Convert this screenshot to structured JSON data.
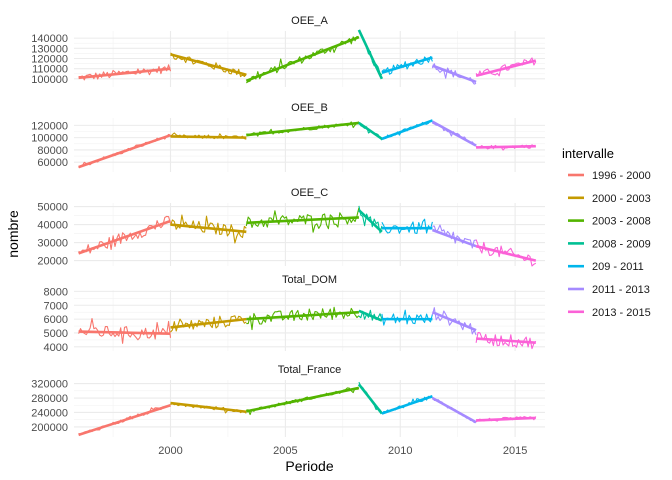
{
  "chart_data": {
    "type": "line",
    "xlabel": "Periode",
    "ylabel": "nombre",
    "x_ticks": [
      2000,
      2005,
      2010,
      2015
    ],
    "xlim": [
      1995.8,
      2016.3
    ],
    "grid": true,
    "legend_position": "right",
    "legend": {
      "title": "intervalle",
      "items": [
        {
          "label": "1996 - 2000",
          "color": "#F8766D"
        },
        {
          "label": "2000 - 2003",
          "color": "#C49A00"
        },
        {
          "label": "2003 - 2008",
          "color": "#53B400"
        },
        {
          "label": "2008 - 2009",
          "color": "#00C094"
        },
        {
          "label": "209 - 2011",
          "color": "#00B6EB"
        },
        {
          "label": "2011 - 2013",
          "color": "#A58AFF"
        },
        {
          "label": "2013 - 2015",
          "color": "#FB61D7"
        }
      ]
    },
    "panels": [
      {
        "title": "OEE_A",
        "ylim": [
          92000,
          147000
        ],
        "y_ticks": [
          100000,
          110000,
          120000,
          130000,
          140000
        ],
        "y_tick_labels": [
          "100000",
          "110000",
          "120000",
          "130000",
          "140000"
        ],
        "trends": [
          {
            "x": [
              1996.0,
              2000.0
            ],
            "y": [
              101000,
              110000
            ]
          },
          {
            "x": [
              2000.0,
              2003.3
            ],
            "y": [
              124000,
              104000
            ]
          },
          {
            "x": [
              2003.3,
              2008.2
            ],
            "y": [
              98000,
              141000
            ]
          },
          {
            "x": [
              2008.2,
              2009.2
            ],
            "y": [
              148000,
              100000
            ]
          },
          {
            "x": [
              2009.2,
              2011.4
            ],
            "y": [
              106000,
              121000
            ]
          },
          {
            "x": [
              2011.4,
              2013.3
            ],
            "y": [
              113000,
              97000
            ]
          },
          {
            "x": [
              2013.3,
              2015.9
            ],
            "y": [
              103000,
              118000
            ]
          }
        ],
        "noise": 4000
      },
      {
        "title": "OEE_B",
        "ylim": [
          44000,
          132000
        ],
        "y_ticks": [
          60000,
          80000,
          100000,
          120000
        ],
        "y_tick_labels": [
          "60000",
          "80000",
          "100000",
          "120000"
        ],
        "trends": [
          {
            "x": [
              1996.0,
              2000.0
            ],
            "y": [
              52000,
              104000
            ]
          },
          {
            "x": [
              2000.0,
              2003.3
            ],
            "y": [
              102000,
              100000
            ]
          },
          {
            "x": [
              2003.3,
              2008.2
            ],
            "y": [
              104000,
              124000
            ]
          },
          {
            "x": [
              2008.2,
              2009.2
            ],
            "y": [
              124000,
              98000
            ]
          },
          {
            "x": [
              2009.2,
              2011.4
            ],
            "y": [
              98000,
              128000
            ]
          },
          {
            "x": [
              2011.4,
              2013.3
            ],
            "y": [
              126000,
              87000
            ]
          },
          {
            "x": [
              2013.3,
              2015.9
            ],
            "y": [
              84000,
              86000
            ]
          }
        ],
        "noise": 3000
      },
      {
        "title": "OEE_C",
        "ylim": [
          17000,
          52000
        ],
        "y_ticks": [
          20000,
          30000,
          40000,
          50000
        ],
        "y_tick_labels": [
          "20000",
          "30000",
          "40000",
          "50000"
        ],
        "trends": [
          {
            "x": [
              1996.0,
              2000.0
            ],
            "y": [
              24000,
              42000
            ]
          },
          {
            "x": [
              2000.0,
              2003.3
            ],
            "y": [
              40000,
              36000
            ]
          },
          {
            "x": [
              2003.3,
              2008.2
            ],
            "y": [
              41000,
              44000
            ]
          },
          {
            "x": [
              2008.2,
              2009.2
            ],
            "y": [
              48000,
              36000
            ]
          },
          {
            "x": [
              2009.2,
              2011.4
            ],
            "y": [
              38000,
              38000
            ]
          },
          {
            "x": [
              2011.4,
              2013.3
            ],
            "y": [
              37000,
              28000
            ]
          },
          {
            "x": [
              2013.3,
              2015.9
            ],
            "y": [
              28000,
              20000
            ]
          }
        ],
        "noise": 3500
      },
      {
        "title": "Total_DOM",
        "ylim": [
          3700,
          8100
        ],
        "y_ticks": [
          4000,
          5000,
          6000,
          7000,
          8000
        ],
        "y_tick_labels": [
          "4000",
          "5000",
          "6000",
          "7000",
          "8000"
        ],
        "trends": [
          {
            "x": [
              1996.0,
              2000.0
            ],
            "y": [
              5100,
              4950
            ]
          },
          {
            "x": [
              2000.0,
              2003.3
            ],
            "y": [
              5400,
              6000
            ]
          },
          {
            "x": [
              2003.3,
              2008.2
            ],
            "y": [
              6000,
              6500
            ]
          },
          {
            "x": [
              2008.2,
              2009.2
            ],
            "y": [
              6600,
              5900
            ]
          },
          {
            "x": [
              2009.2,
              2011.4
            ],
            "y": [
              6000,
              6000
            ]
          },
          {
            "x": [
              2011.4,
              2013.3
            ],
            "y": [
              6500,
              5200
            ]
          },
          {
            "x": [
              2013.3,
              2015.9
            ],
            "y": [
              4600,
              4300
            ]
          }
        ],
        "noise": 450
      },
      {
        "title": "Total_France",
        "ylim": [
          172000,
          330000
        ],
        "y_ticks": [
          200000,
          240000,
          280000,
          320000
        ],
        "y_tick_labels": [
          "200000",
          "240000",
          "280000",
          "320000"
        ],
        "trends": [
          {
            "x": [
              1996.0,
              2000.0
            ],
            "y": [
              178000,
              260000
            ]
          },
          {
            "x": [
              2000.0,
              2003.3
            ],
            "y": [
              266000,
              242000
            ]
          },
          {
            "x": [
              2003.3,
              2008.2
            ],
            "y": [
              243000,
              308000
            ]
          },
          {
            "x": [
              2008.2,
              2009.2
            ],
            "y": [
              318000,
              237000
            ]
          },
          {
            "x": [
              2009.2,
              2011.4
            ],
            "y": [
              237000,
              285000
            ]
          },
          {
            "x": [
              2011.4,
              2013.3
            ],
            "y": [
              280000,
              213000
            ]
          },
          {
            "x": [
              2013.3,
              2015.9
            ],
            "y": [
              218000,
              225000
            ]
          }
        ],
        "noise": 5000
      }
    ]
  }
}
